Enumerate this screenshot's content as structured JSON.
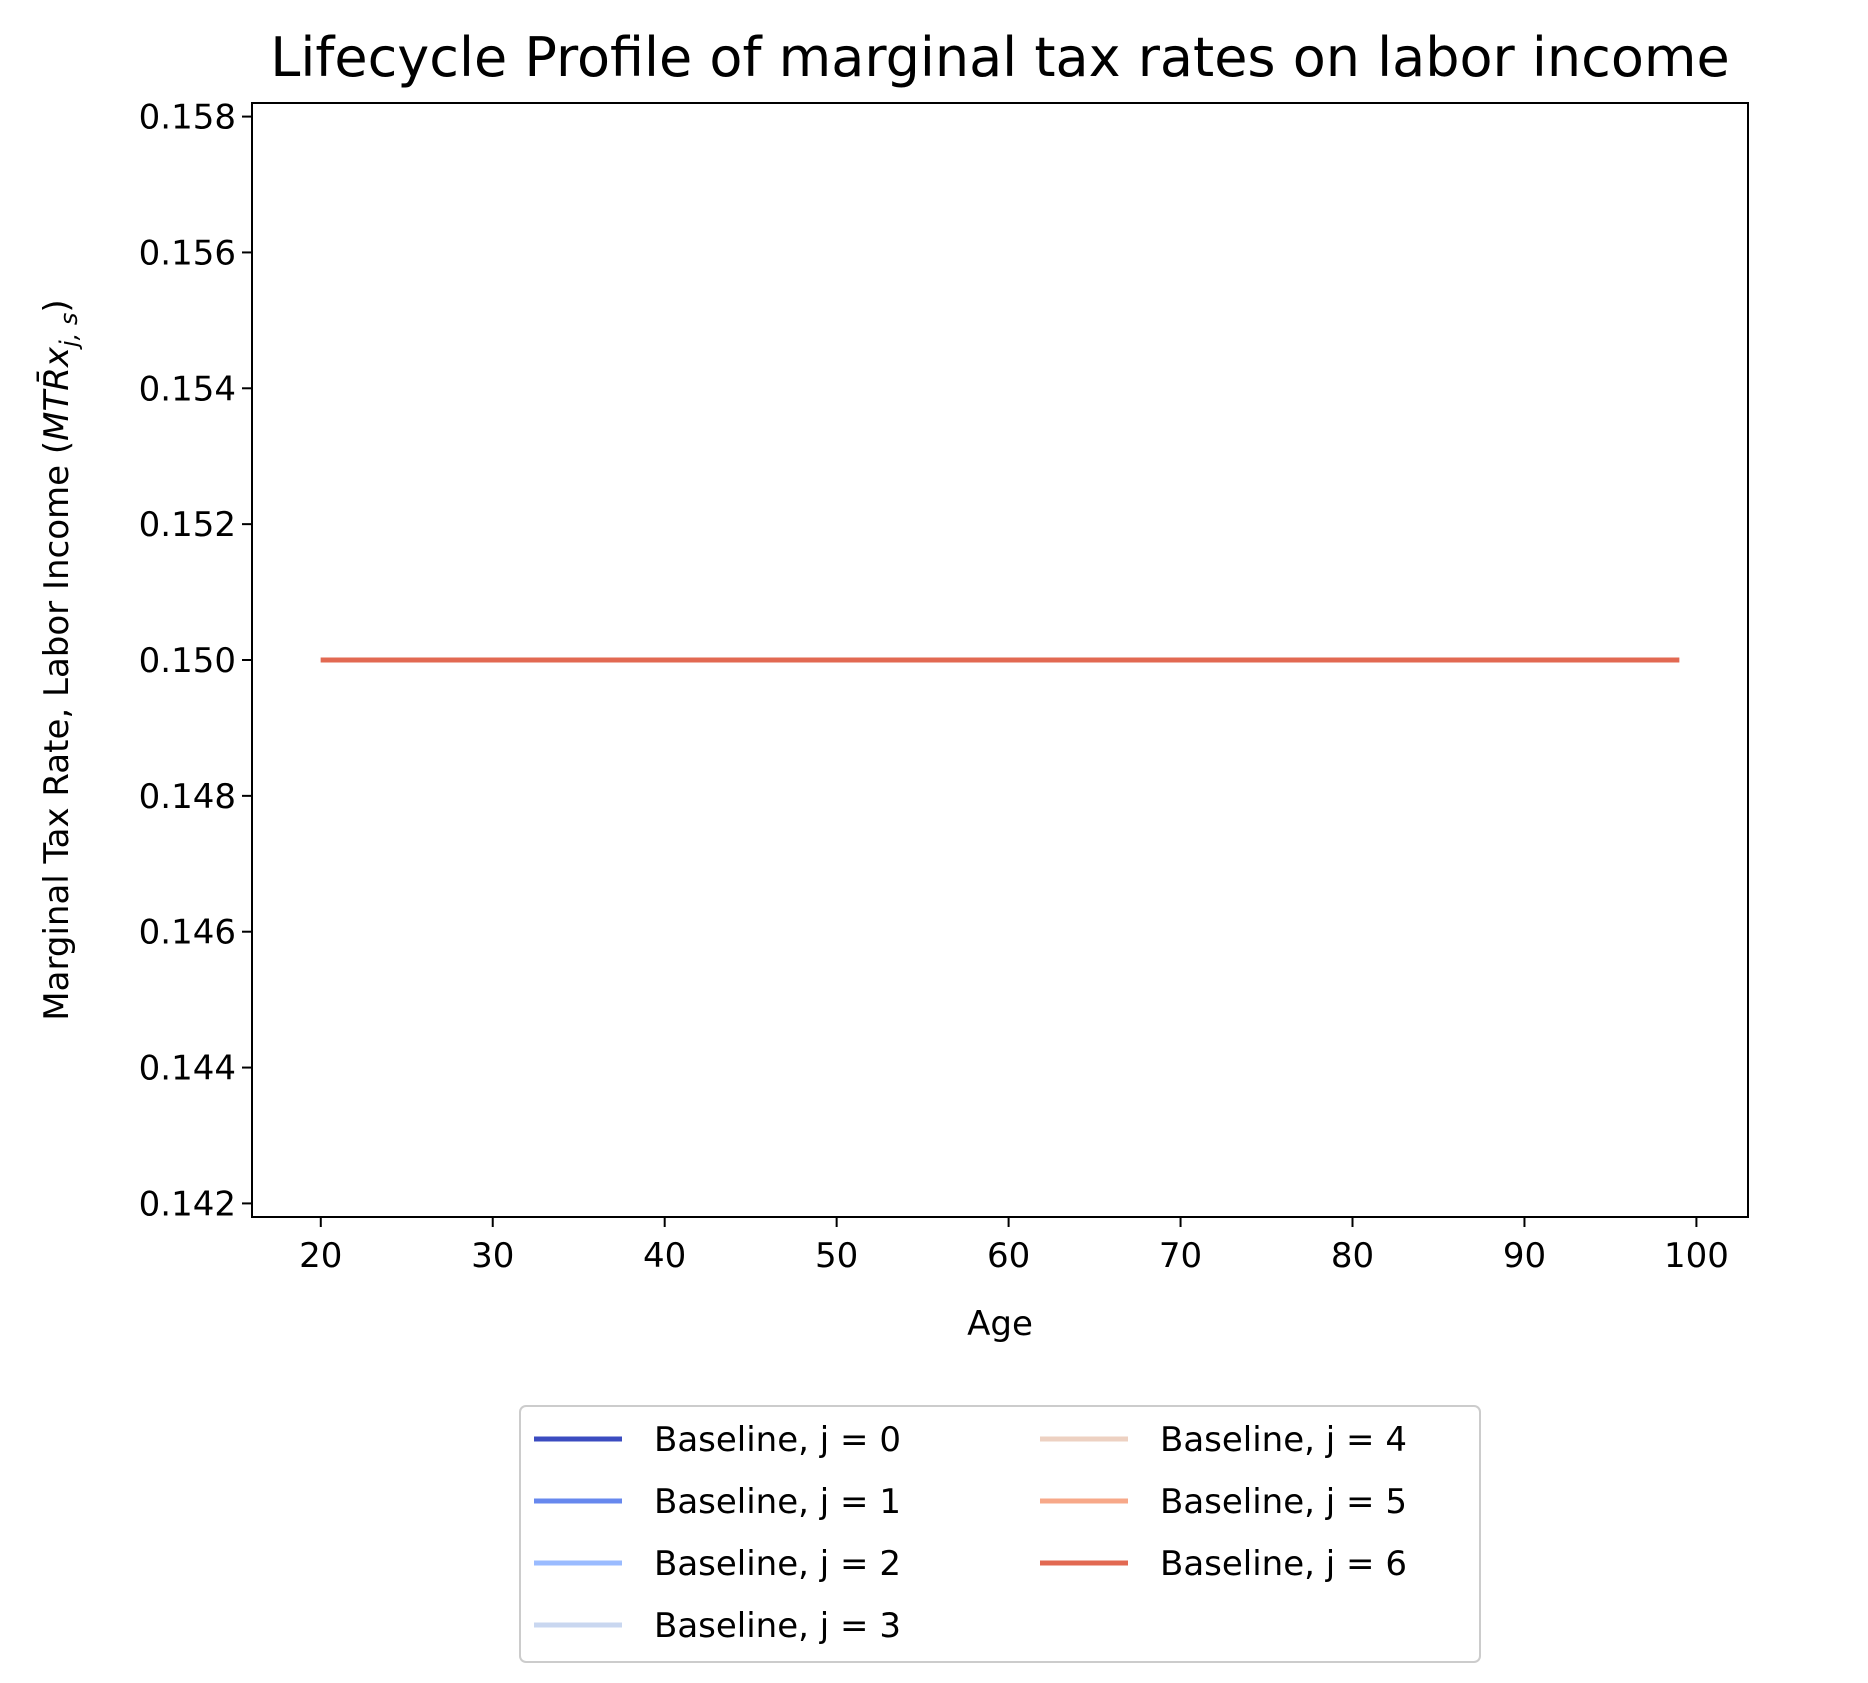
{
  "chart_data": {
    "type": "line",
    "title": "Lifecycle Profile of marginal tax rates on labor income",
    "xlabel": "Age",
    "ylabel_text": "Marginal Tax Rate, Labor Income (",
    "ylabel_math": "MTR̄x",
    "ylabel_subscript": "j, s",
    "ylabel_close": ")",
    "xlim": [
      16,
      103
    ],
    "ylim": [
      0.1418,
      0.1582
    ],
    "xticks": [
      20,
      30,
      40,
      50,
      60,
      70,
      80,
      90,
      100
    ],
    "yticks": [
      0.142,
      0.144,
      0.146,
      0.148,
      0.15,
      0.152,
      0.154,
      0.156,
      0.158
    ],
    "ytick_labels": [
      "0.142",
      "0.144",
      "0.146",
      "0.148",
      "0.150",
      "0.152",
      "0.154",
      "0.156",
      "0.158"
    ],
    "grid": false,
    "legend_placement": "below",
    "x": [
      20,
      99
    ],
    "series": [
      {
        "name": "Baseline, j = 0",
        "color": "#3b4cc0",
        "values": [
          0.15,
          0.15
        ]
      },
      {
        "name": "Baseline, j = 1",
        "color": "#6788ee",
        "values": [
          0.15,
          0.15
        ]
      },
      {
        "name": "Baseline, j = 2",
        "color": "#9abbff",
        "values": [
          0.15,
          0.15
        ]
      },
      {
        "name": "Baseline, j = 3",
        "color": "#c9d7f0",
        "values": [
          0.15,
          0.15
        ]
      },
      {
        "name": "Baseline, j = 4",
        "color": "#edd1c2",
        "values": [
          0.15,
          0.15
        ]
      },
      {
        "name": "Baseline, j = 5",
        "color": "#f7a889",
        "values": [
          0.15,
          0.15
        ]
      },
      {
        "name": "Baseline, j = 6",
        "color": "#e26952",
        "values": [
          0.15,
          0.15
        ]
      }
    ]
  }
}
